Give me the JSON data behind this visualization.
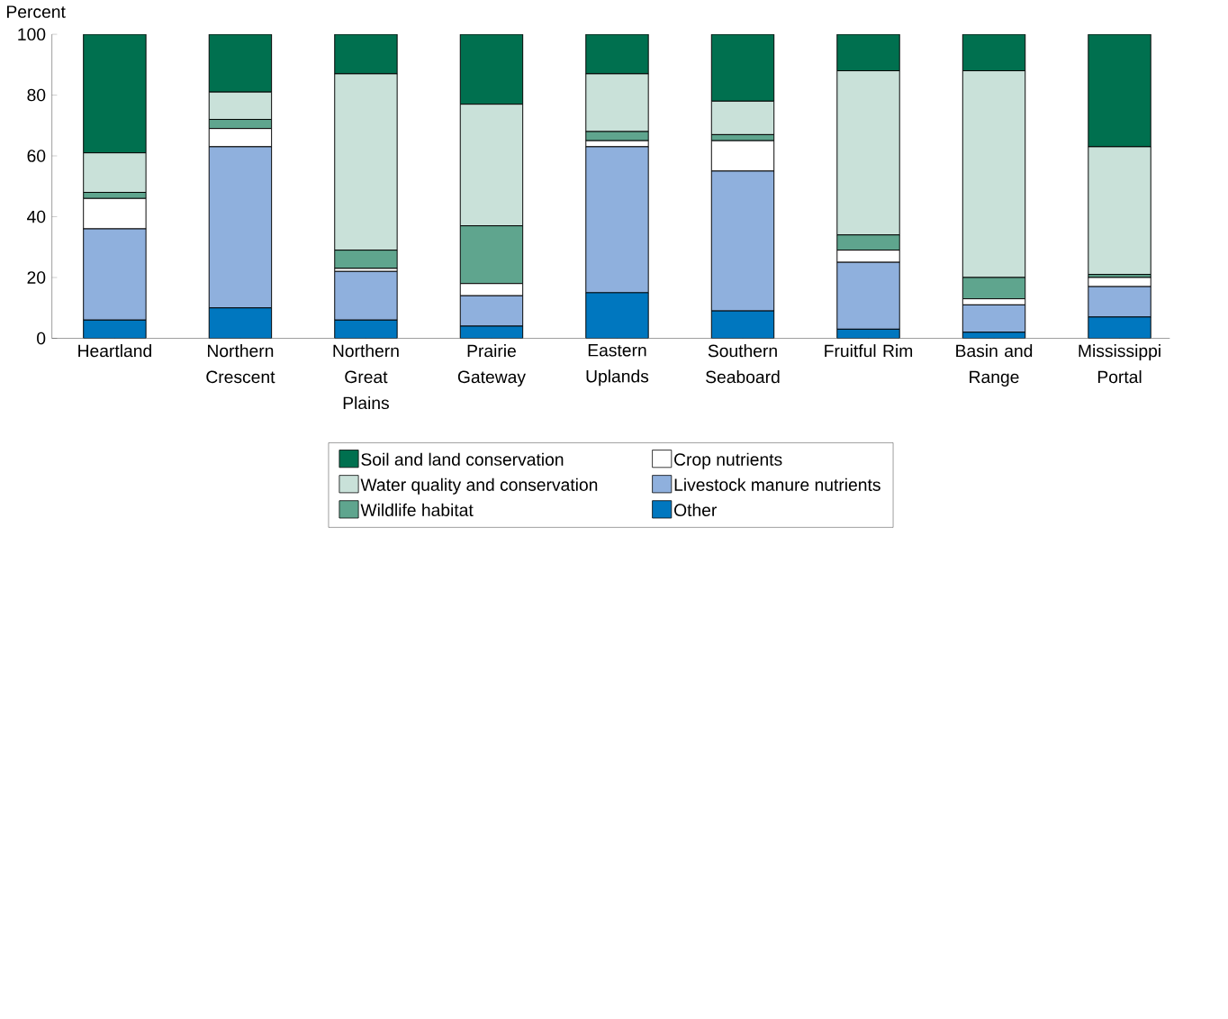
{
  "chart_data": {
    "type": "bar",
    "stacked": true,
    "ylabel": "Percent",
    "categories": [
      "Heartland",
      "Northern Crescent",
      "Northern Great Plains",
      "Prairie Gateway",
      "Eastern Uplands",
      "Southern Seaboard",
      "Fruitful Rim",
      "Basin and Range",
      "Mississippi Portal"
    ],
    "series": [
      {
        "name": "Other",
        "color": "#0077bf",
        "values": [
          6,
          10,
          6,
          4,
          15,
          9,
          3,
          2,
          7
        ]
      },
      {
        "name": "Livestock manure nutrients",
        "color": "#8fb0dd",
        "values": [
          30,
          53,
          16,
          10,
          48,
          46,
          22,
          9,
          10
        ]
      },
      {
        "name": "Crop nutrients",
        "color": "#ffffff",
        "values": [
          10,
          6,
          1,
          4,
          2,
          10,
          4,
          2,
          3
        ]
      },
      {
        "name": "Wildlife habitat",
        "color": "#5fa58e",
        "values": [
          2,
          3,
          6,
          19,
          3,
          2,
          5,
          7,
          1
        ]
      },
      {
        "name": "Water quality and conservation",
        "color": "#c9e1d9",
        "values": [
          13,
          9,
          58,
          40,
          19,
          11,
          54,
          68,
          42
        ]
      },
      {
        "name": "Soil and land conservation",
        "color": "#00704f",
        "values": [
          39,
          19,
          13,
          23,
          13,
          22,
          12,
          12,
          37
        ]
      }
    ],
    "ylim": [
      0,
      100
    ],
    "yticks": [
      0,
      20,
      40,
      60,
      80,
      100
    ],
    "grid": false,
    "legend": "bottom"
  }
}
